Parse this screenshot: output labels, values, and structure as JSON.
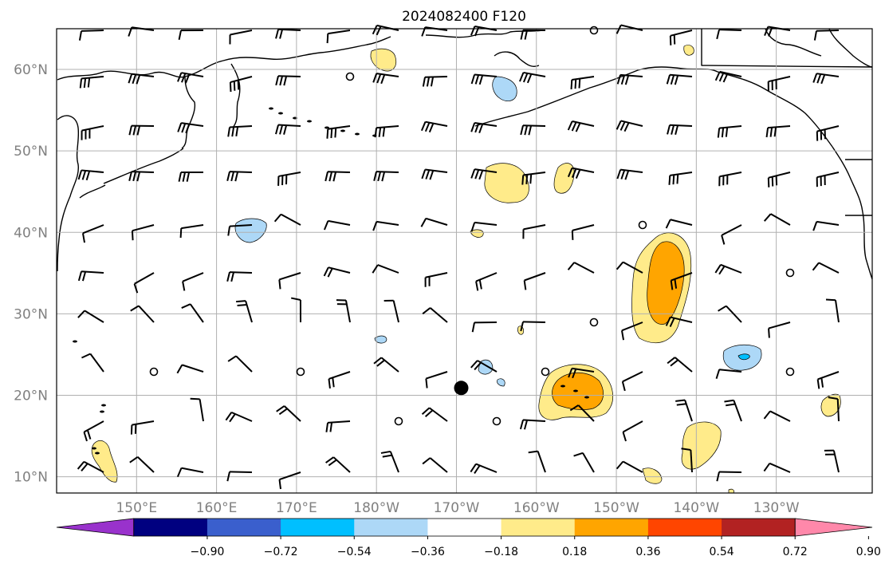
{
  "title": "2024082400 F120",
  "map": {
    "lat_labels": [
      "10°N",
      "20°N",
      "30°N",
      "40°N",
      "50°N",
      "60°N"
    ],
    "lon_labels": [
      "150°E",
      "160°E",
      "170°E",
      "180°W",
      "170°W",
      "160°W",
      "150°W",
      "140°W",
      "130°W"
    ],
    "lat_values": [
      10,
      20,
      30,
      40,
      50,
      60
    ],
    "lon_values": [
      150,
      160,
      170,
      180,
      190,
      200,
      210,
      220,
      230
    ],
    "extent": {
      "lon_min": 140,
      "lon_max": 242,
      "lat_min": 8,
      "lat_max": 65
    },
    "marker": {
      "lon": 190.6,
      "lat": 20.9
    },
    "features": [
      "coastlines",
      "lat-lon-grid",
      "wind-barbs",
      "shaded-anomaly-contours"
    ]
  },
  "colorbar": {
    "tick_labels": [
      "−0.90",
      "−0.72",
      "−0.54",
      "−0.36",
      "−0.18",
      "0.18",
      "0.36",
      "0.54",
      "0.72",
      "0.90"
    ],
    "colors": [
      "#9932CC",
      "#000080",
      "#3A5FCD",
      "#00BFFF",
      "#ADD8F7",
      "#FFFFFF",
      "#FFEB8A",
      "#FFA500",
      "#FF4500",
      "#B22222",
      "#FF88AA"
    ],
    "extend": "both"
  },
  "shading": {
    "levels_colors": {
      "low_pos": "#FFEB8A",
      "mid_pos": "#FFA500",
      "low_neg": "#ADD8F7",
      "mid_neg": "#00BFFF"
    }
  }
}
